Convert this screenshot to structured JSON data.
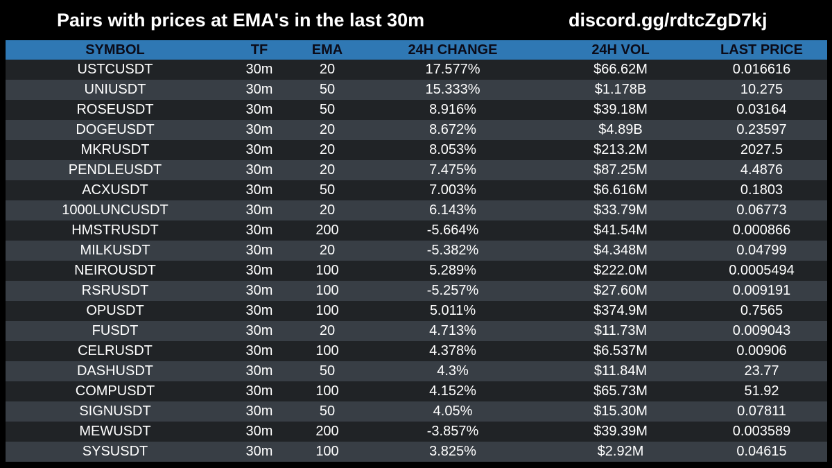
{
  "header": {
    "title": "Pairs with prices at EMA's in the last 30m",
    "invite": "discord.gg/rdtcZgD7kj"
  },
  "colors": {
    "background": "#000000",
    "header_bar": "#2f78b4",
    "row_odd": "#202326",
    "row_even": "#383e45",
    "text": "#ffffff",
    "header_text": "#0b0b18"
  },
  "table": {
    "columns": [
      "SYMBOL",
      "TF",
      "EMA",
      "24H CHANGE",
      "24H VOL",
      "LAST PRICE"
    ],
    "rows": [
      [
        "USTCUSDT",
        "30m",
        "20",
        "17.577%",
        "$66.62M",
        "0.016616"
      ],
      [
        "UNIUSDT",
        "30m",
        "50",
        "15.333%",
        "$1.178B",
        "10.275"
      ],
      [
        "ROSEUSDT",
        "30m",
        "50",
        "8.916%",
        "$39.18M",
        "0.03164"
      ],
      [
        "DOGEUSDT",
        "30m",
        "20",
        "8.672%",
        "$4.89B",
        "0.23597"
      ],
      [
        "MKRUSDT",
        "30m",
        "20",
        "8.053%",
        "$213.2M",
        "2027.5"
      ],
      [
        "PENDLEUSDT",
        "30m",
        "20",
        "7.475%",
        "$87.25M",
        "4.4876"
      ],
      [
        "ACXUSDT",
        "30m",
        "50",
        "7.003%",
        "$6.616M",
        "0.1803"
      ],
      [
        "1000LUNCUSDT",
        "30m",
        "20",
        "6.143%",
        "$33.79M",
        "0.06773"
      ],
      [
        "HMSTRUSDT",
        "30m",
        "200",
        "-5.664%",
        "$41.54M",
        "0.000866"
      ],
      [
        "MILKUSDT",
        "30m",
        "20",
        "-5.382%",
        "$4.348M",
        "0.04799"
      ],
      [
        "NEIROUSDT",
        "30m",
        "100",
        "5.289%",
        "$222.0M",
        "0.0005494"
      ],
      [
        "RSRUSDT",
        "30m",
        "100",
        "-5.257%",
        "$27.60M",
        "0.009191"
      ],
      [
        "OPUSDT",
        "30m",
        "100",
        "5.011%",
        "$374.9M",
        "0.7565"
      ],
      [
        "FUSDT",
        "30m",
        "20",
        "4.713%",
        "$11.73M",
        "0.009043"
      ],
      [
        "CELRUSDT",
        "30m",
        "100",
        "4.378%",
        "$6.537M",
        "0.00906"
      ],
      [
        "DASHUSDT",
        "30m",
        "50",
        "4.3%",
        "$11.84M",
        "23.77"
      ],
      [
        "COMPUSDT",
        "30m",
        "100",
        "4.152%",
        "$65.73M",
        "51.92"
      ],
      [
        "SIGNUSDT",
        "30m",
        "50",
        "4.05%",
        "$15.30M",
        "0.07811"
      ],
      [
        "MEWUSDT",
        "30m",
        "200",
        "-3.857%",
        "$39.39M",
        "0.003589"
      ],
      [
        "SYSUSDT",
        "30m",
        "100",
        "3.825%",
        "$2.92M",
        "0.04615"
      ]
    ]
  }
}
